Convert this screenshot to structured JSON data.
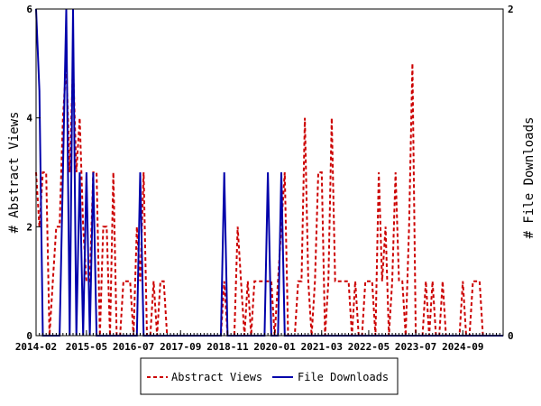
{
  "chart_data": {
    "type": "line",
    "x_tick_labels": [
      "2014-02",
      "2015-05",
      "2016-07",
      "2017-09",
      "2018-11",
      "2020-01",
      "2021-03",
      "2022-05",
      "2023-07",
      "2024-09"
    ],
    "x_range": [
      "2014-02",
      "2025-09"
    ],
    "ylabel_left": "# Abstract Views",
    "ylabel_right": "# File Downloads",
    "ylim_left": [
      0,
      6
    ],
    "ylim_right": [
      0,
      2
    ],
    "y_ticks_left": [
      "0",
      "2",
      "4",
      "6"
    ],
    "y_ticks_right": [
      "0",
      "2"
    ],
    "legend_position": "bottom-center",
    "series": [
      {
        "name": "Abstract Views",
        "axis": "left",
        "color": "#cc0000",
        "style": "dashed",
        "points": [
          [
            "2014-02",
            3
          ],
          [
            "2014-03",
            2
          ],
          [
            "2014-04",
            3
          ],
          [
            "2014-05",
            3
          ],
          [
            "2014-06",
            0
          ],
          [
            "2014-07",
            1
          ],
          [
            "2014-08",
            2
          ],
          [
            "2014-09",
            2
          ],
          [
            "2014-10",
            4
          ],
          [
            "2014-11",
            5
          ],
          [
            "2014-12",
            3
          ],
          [
            "2015-01",
            5
          ],
          [
            "2015-02",
            3
          ],
          [
            "2015-03",
            4
          ],
          [
            "2015-04",
            2
          ],
          [
            "2015-05",
            1
          ],
          [
            "2015-06",
            1
          ],
          [
            "2015-07",
            3
          ],
          [
            "2015-08",
            3
          ],
          [
            "2015-09",
            0
          ],
          [
            "2015-10",
            2
          ],
          [
            "2015-11",
            2
          ],
          [
            "2015-12",
            0
          ],
          [
            "2016-01",
            3
          ],
          [
            "2016-02",
            0
          ],
          [
            "2016-03",
            0
          ],
          [
            "2016-04",
            1
          ],
          [
            "2016-05",
            1
          ],
          [
            "2016-06",
            1
          ],
          [
            "2016-07",
            0
          ],
          [
            "2016-08",
            2
          ],
          [
            "2016-09",
            1
          ],
          [
            "2016-10",
            3
          ],
          [
            "2016-11",
            0
          ],
          [
            "2016-12",
            0
          ],
          [
            "2017-01",
            1
          ],
          [
            "2017-02",
            0
          ],
          [
            "2017-03",
            1
          ],
          [
            "2017-04",
            1
          ],
          [
            "2017-05",
            0
          ],
          [
            "2017-06",
            0
          ],
          [
            "2017-07",
            0
          ],
          [
            "2017-08",
            0
          ],
          [
            "2017-09",
            0
          ],
          [
            "2017-10",
            0
          ],
          [
            "2017-11",
            0
          ],
          [
            "2017-12",
            0
          ],
          [
            "2018-01",
            0
          ],
          [
            "2018-02",
            0
          ],
          [
            "2018-03",
            0
          ],
          [
            "2018-04",
            0
          ],
          [
            "2018-05",
            0
          ],
          [
            "2018-06",
            0
          ],
          [
            "2018-07",
            0
          ],
          [
            "2018-08",
            0
          ],
          [
            "2018-09",
            0
          ],
          [
            "2018-10",
            1
          ],
          [
            "2018-11",
            0
          ],
          [
            "2018-12",
            0
          ],
          [
            "2019-01",
            0
          ],
          [
            "2019-02",
            2
          ],
          [
            "2019-03",
            1
          ],
          [
            "2019-04",
            0
          ],
          [
            "2019-05",
            1
          ],
          [
            "2019-06",
            0
          ],
          [
            "2019-07",
            1
          ],
          [
            "2019-08",
            1
          ],
          [
            "2019-09",
            1
          ],
          [
            "2019-10",
            1
          ],
          [
            "2019-11",
            1
          ],
          [
            "2019-12",
            1
          ],
          [
            "2020-01",
            0
          ],
          [
            "2020-02",
            1
          ],
          [
            "2020-03",
            2
          ],
          [
            "2020-04",
            3
          ],
          [
            "2020-05",
            0
          ],
          [
            "2020-06",
            0
          ],
          [
            "2020-07",
            0
          ],
          [
            "2020-08",
            1
          ],
          [
            "2020-09",
            1
          ],
          [
            "2020-10",
            4
          ],
          [
            "2020-11",
            1
          ],
          [
            "2020-12",
            0
          ],
          [
            "2021-01",
            1
          ],
          [
            "2021-02",
            3
          ],
          [
            "2021-03",
            3
          ],
          [
            "2021-04",
            0
          ],
          [
            "2021-05",
            1
          ],
          [
            "2021-06",
            4
          ],
          [
            "2021-07",
            1
          ],
          [
            "2021-08",
            1
          ],
          [
            "2021-09",
            1
          ],
          [
            "2021-10",
            1
          ],
          [
            "2021-11",
            1
          ],
          [
            "2021-12",
            0
          ],
          [
            "2022-01",
            1
          ],
          [
            "2022-02",
            0
          ],
          [
            "2022-03",
            0
          ],
          [
            "2022-04",
            1
          ],
          [
            "2022-05",
            1
          ],
          [
            "2022-06",
            1
          ],
          [
            "2022-07",
            0
          ],
          [
            "2022-08",
            3
          ],
          [
            "2022-09",
            1
          ],
          [
            "2022-10",
            2
          ],
          [
            "2022-11",
            0
          ],
          [
            "2022-12",
            1
          ],
          [
            "2023-01",
            3
          ],
          [
            "2023-02",
            1
          ],
          [
            "2023-03",
            1
          ],
          [
            "2023-04",
            0
          ],
          [
            "2023-05",
            2
          ],
          [
            "2023-06",
            5
          ],
          [
            "2023-07",
            0
          ],
          [
            "2023-08",
            0
          ],
          [
            "2023-09",
            0
          ],
          [
            "2023-10",
            1
          ],
          [
            "2023-11",
            0
          ],
          [
            "2023-12",
            1
          ],
          [
            "2024-01",
            0
          ],
          [
            "2024-02",
            0
          ],
          [
            "2024-03",
            1
          ],
          [
            "2024-04",
            0
          ],
          [
            "2024-05",
            0
          ],
          [
            "2024-06",
            0
          ],
          [
            "2024-07",
            0
          ],
          [
            "2024-08",
            0
          ],
          [
            "2024-09",
            1
          ],
          [
            "2024-10",
            0
          ],
          [
            "2024-11",
            0
          ],
          [
            "2024-12",
            1
          ],
          [
            "2025-01",
            1
          ],
          [
            "2025-02",
            1
          ],
          [
            "2025-03",
            0
          ],
          [
            "2025-04",
            0
          ],
          [
            "2025-05",
            0
          ],
          [
            "2025-06",
            0
          ],
          [
            "2025-07",
            0
          ],
          [
            "2025-08",
            0
          ],
          [
            "2025-09",
            0
          ]
        ]
      },
      {
        "name": "File Downloads",
        "axis": "right",
        "color": "#0000aa",
        "style": "solid",
        "points": [
          [
            "2014-02",
            2
          ],
          [
            "2014-03",
            1.5
          ],
          [
            "2014-04",
            0
          ],
          [
            "2014-05",
            0
          ],
          [
            "2014-06",
            0
          ],
          [
            "2014-07",
            0
          ],
          [
            "2014-08",
            0
          ],
          [
            "2014-09",
            0
          ],
          [
            "2014-10",
            1
          ],
          [
            "2014-11",
            2
          ],
          [
            "2014-12",
            0
          ],
          [
            "2015-01",
            2
          ],
          [
            "2015-02",
            0
          ],
          [
            "2015-03",
            1
          ],
          [
            "2015-04",
            0
          ],
          [
            "2015-05",
            1
          ],
          [
            "2015-06",
            0
          ],
          [
            "2015-07",
            1
          ],
          [
            "2015-08",
            0
          ],
          [
            "2015-09",
            0
          ],
          [
            "2015-10",
            0
          ],
          [
            "2015-11",
            0
          ],
          [
            "2015-12",
            0
          ],
          [
            "2016-01",
            0
          ],
          [
            "2016-02",
            0
          ],
          [
            "2016-03",
            0
          ],
          [
            "2016-04",
            0
          ],
          [
            "2016-05",
            0
          ],
          [
            "2016-06",
            0
          ],
          [
            "2016-07",
            0
          ],
          [
            "2016-08",
            0
          ],
          [
            "2016-09",
            1
          ],
          [
            "2016-10",
            0
          ],
          [
            "2016-11",
            0
          ],
          [
            "2016-12",
            0
          ],
          [
            "2017-01",
            0
          ],
          [
            "2017-02",
            0
          ],
          [
            "2017-03",
            0
          ],
          [
            "2017-04",
            0
          ],
          [
            "2017-05",
            0
          ],
          [
            "2017-06",
            0
          ],
          [
            "2017-07",
            0
          ],
          [
            "2017-08",
            0
          ],
          [
            "2017-09",
            0
          ],
          [
            "2017-10",
            0
          ],
          [
            "2017-11",
            0
          ],
          [
            "2017-12",
            0
          ],
          [
            "2018-01",
            0
          ],
          [
            "2018-02",
            0
          ],
          [
            "2018-03",
            0
          ],
          [
            "2018-04",
            0
          ],
          [
            "2018-05",
            0
          ],
          [
            "2018-06",
            0
          ],
          [
            "2018-07",
            0
          ],
          [
            "2018-08",
            0
          ],
          [
            "2018-09",
            0
          ],
          [
            "2018-10",
            1
          ],
          [
            "2018-11",
            0
          ],
          [
            "2018-12",
            0
          ],
          [
            "2019-01",
            0
          ],
          [
            "2019-02",
            0
          ],
          [
            "2019-03",
            0
          ],
          [
            "2019-04",
            0
          ],
          [
            "2019-05",
            0
          ],
          [
            "2019-06",
            0
          ],
          [
            "2019-07",
            0
          ],
          [
            "2019-08",
            0
          ],
          [
            "2019-09",
            0
          ],
          [
            "2019-10",
            0
          ],
          [
            "2019-11",
            1
          ],
          [
            "2019-12",
            0
          ],
          [
            "2020-01",
            0
          ],
          [
            "2020-02",
            0
          ],
          [
            "2020-03",
            1
          ],
          [
            "2020-04",
            0
          ],
          [
            "2020-05",
            0
          ],
          [
            "2020-06",
            0
          ],
          [
            "2020-07",
            0
          ],
          [
            "2020-08",
            0
          ],
          [
            "2020-09",
            0
          ],
          [
            "2020-10",
            0
          ],
          [
            "2020-11",
            0
          ],
          [
            "2020-12",
            0
          ],
          [
            "2021-01",
            0
          ],
          [
            "2021-02",
            0
          ],
          [
            "2021-03",
            0
          ],
          [
            "2021-04",
            0
          ],
          [
            "2021-05",
            0
          ],
          [
            "2021-06",
            0
          ],
          [
            "2021-07",
            0
          ],
          [
            "2021-08",
            0
          ],
          [
            "2021-09",
            0
          ],
          [
            "2021-10",
            0
          ],
          [
            "2021-11",
            0
          ],
          [
            "2021-12",
            0
          ],
          [
            "2022-01",
            0
          ],
          [
            "2022-02",
            0
          ],
          [
            "2022-03",
            0
          ],
          [
            "2022-04",
            0
          ],
          [
            "2022-05",
            0
          ],
          [
            "2022-06",
            0
          ],
          [
            "2022-07",
            0
          ],
          [
            "2022-08",
            0
          ],
          [
            "2022-09",
            0
          ],
          [
            "2022-10",
            0
          ],
          [
            "2022-11",
            0
          ],
          [
            "2022-12",
            0
          ],
          [
            "2023-01",
            0
          ],
          [
            "2023-02",
            0
          ],
          [
            "2023-03",
            0
          ],
          [
            "2023-04",
            0
          ],
          [
            "2023-05",
            0
          ],
          [
            "2023-06",
            0
          ],
          [
            "2023-07",
            0
          ],
          [
            "2023-08",
            0
          ],
          [
            "2023-09",
            0
          ],
          [
            "2023-10",
            0
          ],
          [
            "2023-11",
            0
          ],
          [
            "2023-12",
            0
          ],
          [
            "2024-01",
            0
          ],
          [
            "2024-02",
            0
          ],
          [
            "2024-03",
            0
          ],
          [
            "2024-04",
            0
          ],
          [
            "2024-05",
            0
          ],
          [
            "2024-06",
            0
          ],
          [
            "2024-07",
            0
          ],
          [
            "2024-08",
            0
          ],
          [
            "2024-09",
            0
          ],
          [
            "2024-10",
            0
          ],
          [
            "2024-11",
            0
          ],
          [
            "2024-12",
            0
          ],
          [
            "2025-01",
            0
          ],
          [
            "2025-02",
            0
          ],
          [
            "2025-03",
            0
          ],
          [
            "2025-04",
            0
          ],
          [
            "2025-05",
            0
          ],
          [
            "2025-06",
            0
          ],
          [
            "2025-07",
            0
          ],
          [
            "2025-08",
            0
          ],
          [
            "2025-09",
            0
          ]
        ]
      }
    ]
  }
}
